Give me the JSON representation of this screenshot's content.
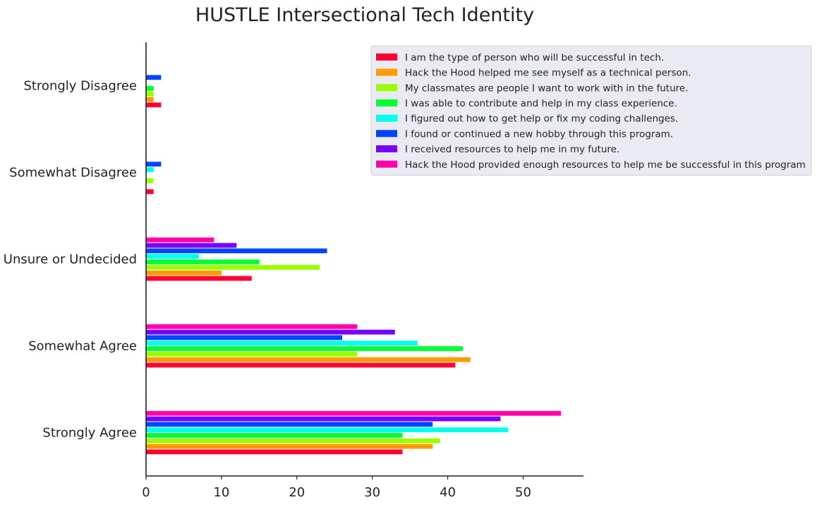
{
  "chart_data": {
    "type": "bar",
    "orientation": "horizontal",
    "title": "HUSTLE Intersectional Tech Identity",
    "xlabel": "",
    "ylabel": "",
    "xlim": [
      0,
      58
    ],
    "xticks": [
      0,
      10,
      20,
      30,
      40,
      50
    ],
    "grid": false,
    "legend_position": "top-right",
    "categories": [
      "Strongly Agree",
      "Somewhat Agree",
      "Unsure or Undecided",
      "Somewhat Disagree",
      "Strongly Disagree"
    ],
    "series": [
      {
        "name": "I am the type of person who will be successful in tech.",
        "color": "#ff0033",
        "values": [
          34,
          41,
          14,
          1,
          2
        ]
      },
      {
        "name": "Hack the Hood helped me see myself as a technical person.",
        "color": "#ff9900",
        "values": [
          38,
          43,
          10,
          0,
          1
        ]
      },
      {
        "name": "My classmates are people I want to work with in the future.",
        "color": "#99ff00",
        "values": [
          39,
          28,
          23,
          1,
          1
        ]
      },
      {
        "name": "I was able to contribute and help in my class experience.",
        "color": "#00ff33",
        "values": [
          34,
          42,
          15,
          0,
          1
        ]
      },
      {
        "name": "I figured out how to get help or fix my coding challenges.",
        "color": "#00ffee",
        "values": [
          48,
          36,
          7,
          1,
          0
        ]
      },
      {
        "name": "I found or continued a new hobby through this program.",
        "color": "#0044ff",
        "values": [
          38,
          26,
          24,
          2,
          2
        ]
      },
      {
        "name": "I received resources to help me in my future.",
        "color": "#7700ff",
        "values": [
          47,
          33,
          12,
          0,
          0
        ]
      },
      {
        "name": "Hack the Hood provided enough resources to help me be successful in this program",
        "color": "#ff00aa",
        "values": [
          55,
          28,
          9,
          0,
          0
        ]
      }
    ]
  }
}
